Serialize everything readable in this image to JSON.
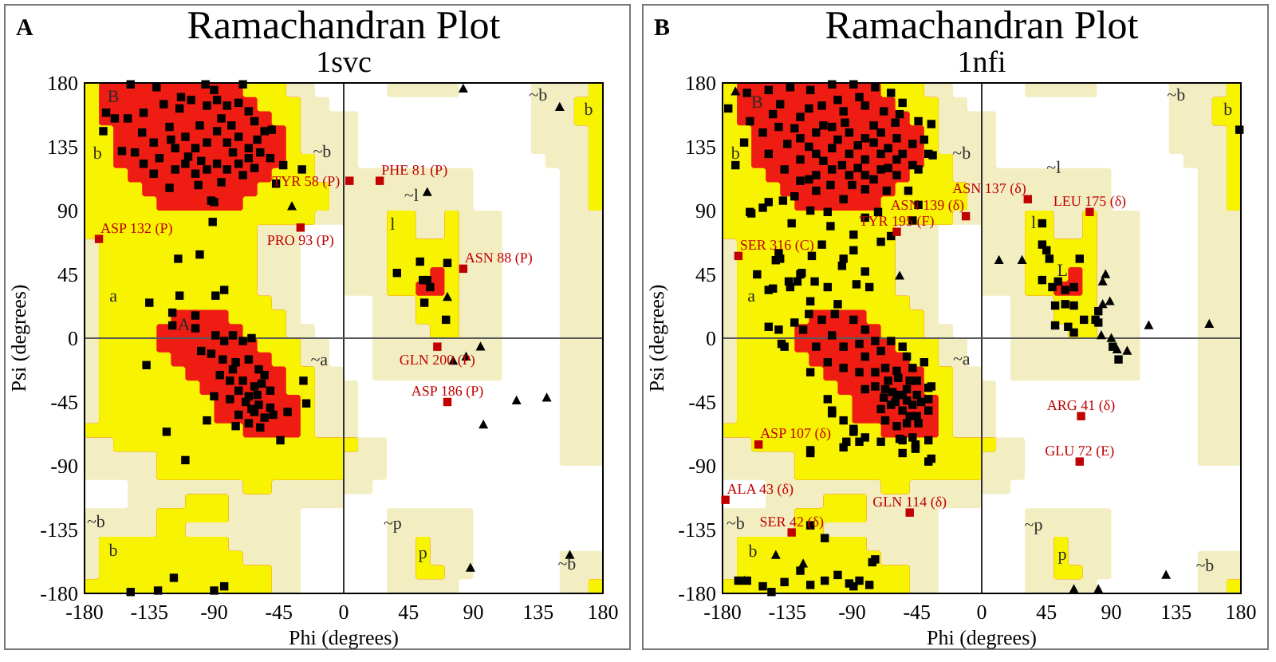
{
  "chart_data": [
    {
      "type": "scatter",
      "title": "Ramachandran Plot",
      "subtitle": "1svc",
      "xlabel": "Phi (degrees)",
      "ylabel": "Psi (degrees)",
      "xlim": [
        -180,
        180
      ],
      "ylim": [
        -180,
        180
      ],
      "xticks": [
        -180,
        -135,
        -90,
        -45,
        0,
        45,
        90,
        135,
        180
      ],
      "yticks": [
        -180,
        -135,
        -90,
        -45,
        0,
        45,
        90,
        135,
        180
      ],
      "ref_lines": [
        {
          "axis": "x",
          "value": 0,
          "color": "#303030"
        },
        {
          "axis": "y",
          "value": 0,
          "color": "#5a5a5a"
        }
      ],
      "series": [
        {
          "marker": "square",
          "color": "#000000",
          "x": [
            -148,
            -130,
            -96,
            -70,
            -167,
            -165,
            -159,
            -150,
            -139,
            -154,
            -145,
            -132,
            -121,
            -114,
            -106,
            -95,
            -88,
            -81,
            -73,
            -66,
            -62,
            -55,
            -50,
            -128,
            -117,
            -110,
            -103,
            -95,
            -88,
            -81,
            -73,
            -66,
            -58,
            -51,
            -117,
            -110,
            -103,
            -95,
            -88,
            -81,
            -73,
            -66,
            -132,
            -139,
            -101,
            -121,
            -92,
            -90,
            -42,
            -29,
            -47,
            -91,
            -115,
            -100,
            -135,
            -114,
            -89,
            -83,
            -119,
            -103,
            -140,
            -125,
            -100,
            -85,
            -60,
            -77,
            -108,
            -99,
            -70,
            -62,
            -85,
            -113,
            -120,
            -90,
            -78,
            53,
            37,
            55,
            56,
            72,
            71,
            58,
            60,
            -119,
            -103,
            -89,
            -83,
            -77,
            -70,
            -64,
            -99,
            -92,
            -84,
            -75,
            -66,
            -59,
            -86,
            -79,
            -70,
            -62,
            -55,
            -51,
            -73,
            -66,
            -59,
            -51,
            -62,
            -73,
            -55,
            -49,
            -75,
            -66,
            -58,
            -90,
            -95,
            -79,
            -39,
            -26,
            -28,
            -44,
            -137,
            -123,
            -110,
            -77,
            -68,
            -60,
            -57,
            -64,
            -90,
            -118,
            -129,
            -148,
            -83
          ],
          "values": [
            179,
            177,
            179,
            179,
            146,
            159,
            155,
            155,
            159,
            132,
            131,
            138,
            149,
            162,
            168,
            164,
            168,
            164,
            166,
            160,
            153,
            146,
            147,
            127,
            134,
            142,
            134,
            138,
            146,
            138,
            142,
            134,
            131,
            127,
            119,
            123,
            116,
            119,
            123,
            119,
            123,
            127,
            116,
            123,
            108,
            106,
            97,
            96,
            122,
            119,
            109,
            82,
            56,
            59,
            25,
            30,
            30,
            34,
            18,
            16,
            145,
            165,
            150,
            155,
            140,
            131,
            128,
            125,
            115,
            120,
            110,
            170,
            140,
            175,
            150,
            54,
            46,
            41,
            25,
            53,
            13,
            41,
            36,
            9,
            7,
            2,
            -2,
            2,
            -2,
            0,
            -9,
            -11,
            -15,
            -17,
            -15,
            -22,
            -26,
            -30,
            -30,
            -34,
            -26,
            -37,
            -37,
            -41,
            -47,
            -49,
            -52,
            -54,
            -56,
            -54,
            -62,
            -60,
            -63,
            -41,
            -58,
            -43,
            -52,
            -46,
            -30,
            -72,
            -19,
            -66,
            -86,
            -22,
            -45,
            -40,
            -32,
            -50,
            -178,
            -169,
            -178,
            -179,
            -175
          ]
        },
        {
          "marker": "triangle",
          "color": "#000000",
          "x": [
            -36,
            58,
            72,
            83,
            150,
            76,
            85,
            95,
            120,
            141,
            97,
            88,
            157
          ],
          "values": [
            93,
            103,
            29,
            176,
            163,
            -16,
            -13,
            -6,
            -44,
            -42,
            -61,
            -162,
            -153
          ]
        },
        {
          "marker": "square",
          "color": "#c00000",
          "x": [
            -170,
            -30,
            4,
            25,
            83,
            65,
            72
          ],
          "values": [
            70,
            78,
            111,
            111,
            49,
            -6,
            -45
          ]
        }
      ],
      "annotations": [
        "A",
        "B",
        "b",
        "~b",
        "~l",
        "l",
        "a",
        "A",
        "~a",
        "~b",
        "b",
        "~b",
        "b",
        "~p",
        "p",
        "~b",
        {
          "text": "ASP 132 (P)",
          "x": -170,
          "y": 70
        },
        {
          "text": "PRO 93 (P)",
          "x": -30,
          "y": 78
        },
        {
          "text": "TYR 58 (P)",
          "x": 4,
          "y": 111
        },
        {
          "text": "PHE 81 (P)",
          "x": 25,
          "y": 111
        },
        {
          "text": "ASN 88 (P)",
          "x": 83,
          "y": 49
        },
        {
          "text": "GLN 200 (P)",
          "x": 65,
          "y": -6
        },
        {
          "text": "ASP 186 (P)",
          "x": 72,
          "y": -45
        }
      ]
    },
    {
      "type": "scatter",
      "title": "Ramachandran Plot",
      "subtitle": "1nfi",
      "xlabel": "Phi (degrees)",
      "ylabel": "Psi (degrees)",
      "xlim": [
        -180,
        180
      ],
      "ylim": [
        -180,
        180
      ],
      "xticks": [
        -180,
        -135,
        -90,
        -45,
        0,
        45,
        90,
        135,
        180
      ],
      "yticks": [
        -180,
        -135,
        -90,
        -45,
        0,
        45,
        90,
        135,
        180
      ],
      "ref_lines": [
        {
          "axis": "x",
          "value": 0,
          "color": "#303030"
        },
        {
          "axis": "y",
          "value": 0,
          "color": "#5a5a5a"
        }
      ],
      "series": [
        {
          "marker": "square",
          "color": "#000000",
          "x": [
            -176,
            -163,
            -148,
            -133,
            -119,
            -104,
            -89,
            -74,
            -63,
            -55,
            -57,
            -44,
            -35,
            -161,
            -152,
            -141,
            -126,
            -111,
            -96,
            -81,
            -68,
            -165,
            -171,
            -148,
            -135,
            -126,
            -115,
            -104,
            -92,
            -81,
            -70,
            -59,
            -48,
            -37,
            -137,
            -126,
            -115,
            -104,
            -92,
            -81,
            -70,
            -59,
            -48,
            -126,
            -115,
            -104,
            -92,
            -81,
            -70,
            -59,
            -44,
            -34,
            -130,
            -115,
            -96,
            -81,
            -66,
            -51,
            -44,
            -148,
            -161,
            -138,
            -140,
            -120,
            -100,
            -85,
            -110,
            -95,
            -75,
            -60,
            -130,
            -145,
            -120,
            -100,
            -86,
            -75,
            -65,
            -110,
            -97,
            -86,
            -75,
            -65,
            -105,
            -90,
            -120,
            -55,
            -40,
            -152,
            -119,
            -107,
            -81,
            -72,
            -132,
            -105,
            -89,
            -111,
            -140,
            -143,
            -118,
            -89,
            -70,
            -63,
            -48,
            -125,
            -128,
            -145,
            -133,
            -116,
            -97,
            -87,
            -78,
            -148,
            -134,
            -126,
            -119,
            -107,
            -100,
            -120,
            -130,
            -137,
            -141,
            -124,
            -111,
            -102,
            -89,
            -81,
            -74,
            -115,
            -104,
            -96,
            -85,
            -81,
            -70,
            -63,
            -55,
            -52,
            -107,
            -96,
            -85,
            -74,
            -67,
            -59,
            -48,
            -40,
            -81,
            -74,
            -67,
            -59,
            -52,
            -45,
            -37,
            -63,
            -55,
            -48,
            -67,
            -59,
            -52,
            -45,
            -37,
            -107,
            -104,
            -96,
            -89,
            -81,
            -70,
            -57,
            -48,
            -37,
            -119,
            -96,
            -55,
            -35,
            -46,
            -160,
            -141,
            -96,
            -81,
            -156,
            -65,
            -60,
            -55,
            -62,
            -50,
            -58,
            -68,
            -52,
            -45,
            -70,
            -50,
            -42,
            -148,
            -139,
            -119,
            -104,
            -89,
            -119,
            -94,
            -85,
            -55,
            -46,
            -37,
            -35,
            -37,
            -44,
            -169,
            -163,
            -152,
            -146,
            -137,
            -126,
            -119,
            -109,
            -109,
            -119,
            -100,
            -92,
            -89,
            -85,
            -78,
            -76,
            -74,
            42,
            42,
            45,
            47,
            42,
            49,
            53,
            58,
            64,
            68,
            51,
            58,
            64,
            71,
            79,
            81,
            51,
            60,
            64,
            81,
            91,
            95,
            179
          ],
          "values": [
            162,
            173,
            175,
            177,
            175,
            179,
            179,
            177,
            173,
            166,
            158,
            153,
            151,
            153,
            145,
            149,
            156,
            164,
            160,
            164,
            160,
            138,
            122,
            130,
            137,
            141,
            145,
            149,
            145,
            141,
            145,
            141,
            137,
            130,
            119,
            126,
            130,
            134,
            130,
            126,
            130,
            126,
            122,
            111,
            115,
            119,
            115,
            115,
            119,
            115,
            119,
            129,
            100,
            104,
            98,
            105,
            104,
            104,
            94,
            96,
            89,
            97,
            165,
            162,
            168,
            170,
            150,
            152,
            150,
            152,
            148,
            158,
            135,
            140,
            136,
            138,
            134,
            125,
            122,
            120,
            112,
            120,
            108,
            108,
            112,
            130,
            140,
            92,
            90,
            89,
            85,
            89,
            81,
            79,
            73,
            66,
            56,
            55,
            58,
            62,
            68,
            72,
            83,
            46,
            40,
            35,
            36,
            40,
            51,
            38,
            36,
            34,
            40,
            45,
            26,
            36,
            24,
            17,
            11,
            -6,
            6,
            6,
            13,
            17,
            13,
            6,
            -2,
            -6,
            2,
            -6,
            -4,
            -13,
            -9,
            -2,
            -6,
            -13,
            -17,
            -21,
            -24,
            -24,
            -21,
            -23,
            -21,
            -17,
            -36,
            -34,
            -36,
            -40,
            -36,
            -40,
            -35,
            -47,
            -51,
            -47,
            -58,
            -62,
            -60,
            -55,
            -51,
            -43,
            -51,
            -58,
            -64,
            -70,
            -73,
            -71,
            -70,
            -72,
            -81,
            -77,
            -81,
            -85,
            -78,
            88,
            60,
            56,
            47,
            45,
            -30,
            -45,
            -40,
            -38,
            -30,
            -28,
            -42,
            -44,
            -30,
            -50,
            -55,
            -45,
            8,
            -4,
            -24,
            -53,
            -66,
            -79,
            -73,
            -73,
            -72,
            -75,
            -87,
            -34,
            -43,
            -60,
            -171,
            -171,
            -175,
            -179,
            -172,
            -164,
            -174,
            -171,
            -141,
            -132,
            -167,
            -173,
            -175,
            -171,
            -174,
            -158,
            -156,
            81,
            66,
            62,
            56,
            41,
            36,
            40,
            34,
            36,
            56,
            23,
            24,
            23,
            13,
            13,
            19,
            9,
            8,
            4,
            11,
            -6,
            -15,
            147
          ]
        },
        {
          "marker": "triangle",
          "color": "#000000",
          "x": [
            -171,
            -143,
            -124,
            -165,
            64,
            81,
            128,
            -57,
            12,
            28,
            86,
            84,
            84,
            89,
            116,
            158,
            90,
            94,
            101,
            83
          ],
          "values": [
            174,
            -153,
            -159,
            -171,
            -177,
            -177,
            -167,
            44,
            55,
            55,
            45,
            40,
            24,
            26,
            9,
            10,
            0,
            -8,
            -9,
            2
          ]
        },
        {
          "marker": "square",
          "color": "#c00000",
          "x": [
            -169,
            -59,
            -11,
            32,
            75,
            -155,
            -178,
            -50,
            -132,
            69,
            68
          ],
          "values": [
            58,
            75,
            86,
            98,
            89,
            -75,
            -114,
            -123,
            -137,
            -55,
            -87
          ]
        }
      ],
      "annotations": [
        "B",
        "B",
        "b",
        "~b",
        "~l",
        "l",
        "a",
        "L",
        "~b",
        "b",
        "~a",
        "~b",
        "b",
        "~p",
        "p",
        "~b",
        {
          "text": "SER 316 (C)",
          "x": -169,
          "y": 58
        },
        {
          "text": "TYR 195 (F)",
          "x": -59,
          "y": 75
        },
        {
          "text": "ASN 139 (δ)",
          "x": -11,
          "y": 86
        },
        {
          "text": "ASN 137 (δ)",
          "x": 32,
          "y": 98
        },
        {
          "text": "LEU 175 (δ)",
          "x": 75,
          "y": 89
        },
        {
          "text": "ASP 107 (δ)",
          "x": -155,
          "y": -75
        },
        {
          "text": "ALA 43 (δ)",
          "x": -178,
          "y": -114
        },
        {
          "text": "GLN 114 (δ)",
          "x": -50,
          "y": -123
        },
        {
          "text": "SER 42 (δ)",
          "x": -132,
          "y": -137
        },
        {
          "text": "ARG 41 (δ)",
          "x": 69,
          "y": -55
        },
        {
          "text": "GLU 72 (E)",
          "x": 68,
          "y": -87
        }
      ]
    }
  ]
}
